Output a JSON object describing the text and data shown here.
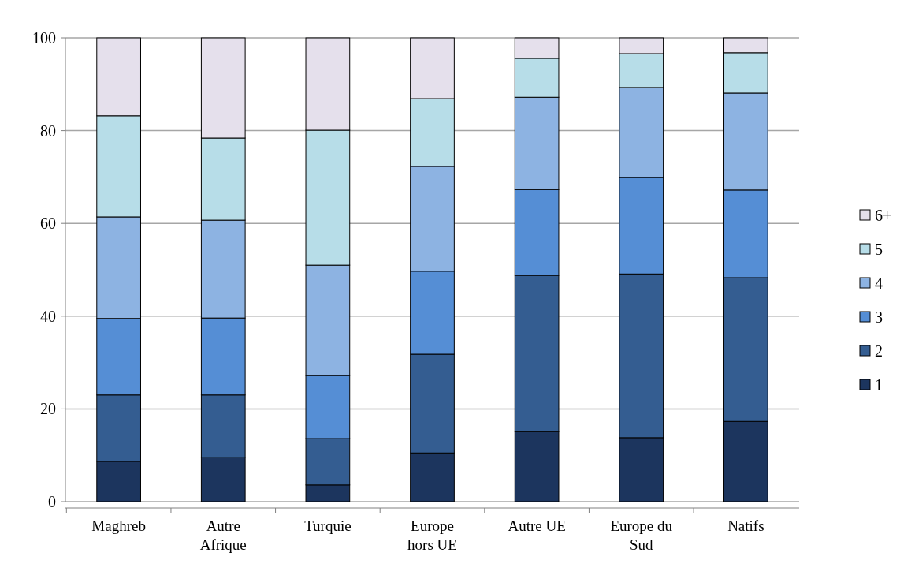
{
  "chart_data": {
    "type": "bar",
    "stacked": true,
    "categories": [
      "Maghreb",
      "Autre Afrique",
      "Turquie",
      "Europe hors UE",
      "Autre UE",
      "Europe du Sud",
      "Natifs"
    ],
    "series": [
      {
        "name": "1",
        "color": "#1c355e",
        "values": [
          8.7,
          9.5,
          3.6,
          10.5,
          15.1,
          13.8,
          17.3
        ]
      },
      {
        "name": "2",
        "color": "#345d91",
        "values": [
          14.3,
          13.5,
          10,
          21.3,
          33.7,
          35.3,
          31
        ]
      },
      {
        "name": "3",
        "color": "#558ed5",
        "values": [
          16.5,
          16.6,
          13.6,
          17.9,
          18.5,
          20.8,
          18.9
        ]
      },
      {
        "name": "4",
        "color": "#8db3e2",
        "values": [
          21.9,
          21.1,
          23.8,
          22.6,
          19.9,
          19.4,
          20.9
        ]
      },
      {
        "name": "5",
        "color": "#b7dde8",
        "values": [
          21.8,
          17.7,
          29.1,
          14.6,
          8.4,
          7.3,
          8.7
        ]
      },
      {
        "name": "6+",
        "color": "#e5e0ec",
        "values": [
          16.8,
          21.6,
          19.9,
          13.1,
          4.4,
          3.4,
          3.2
        ]
      }
    ],
    "ylim": [
      0,
      100
    ],
    "yticks": [
      0,
      20,
      40,
      60,
      80,
      100
    ],
    "grid": "y",
    "legend": "right"
  }
}
